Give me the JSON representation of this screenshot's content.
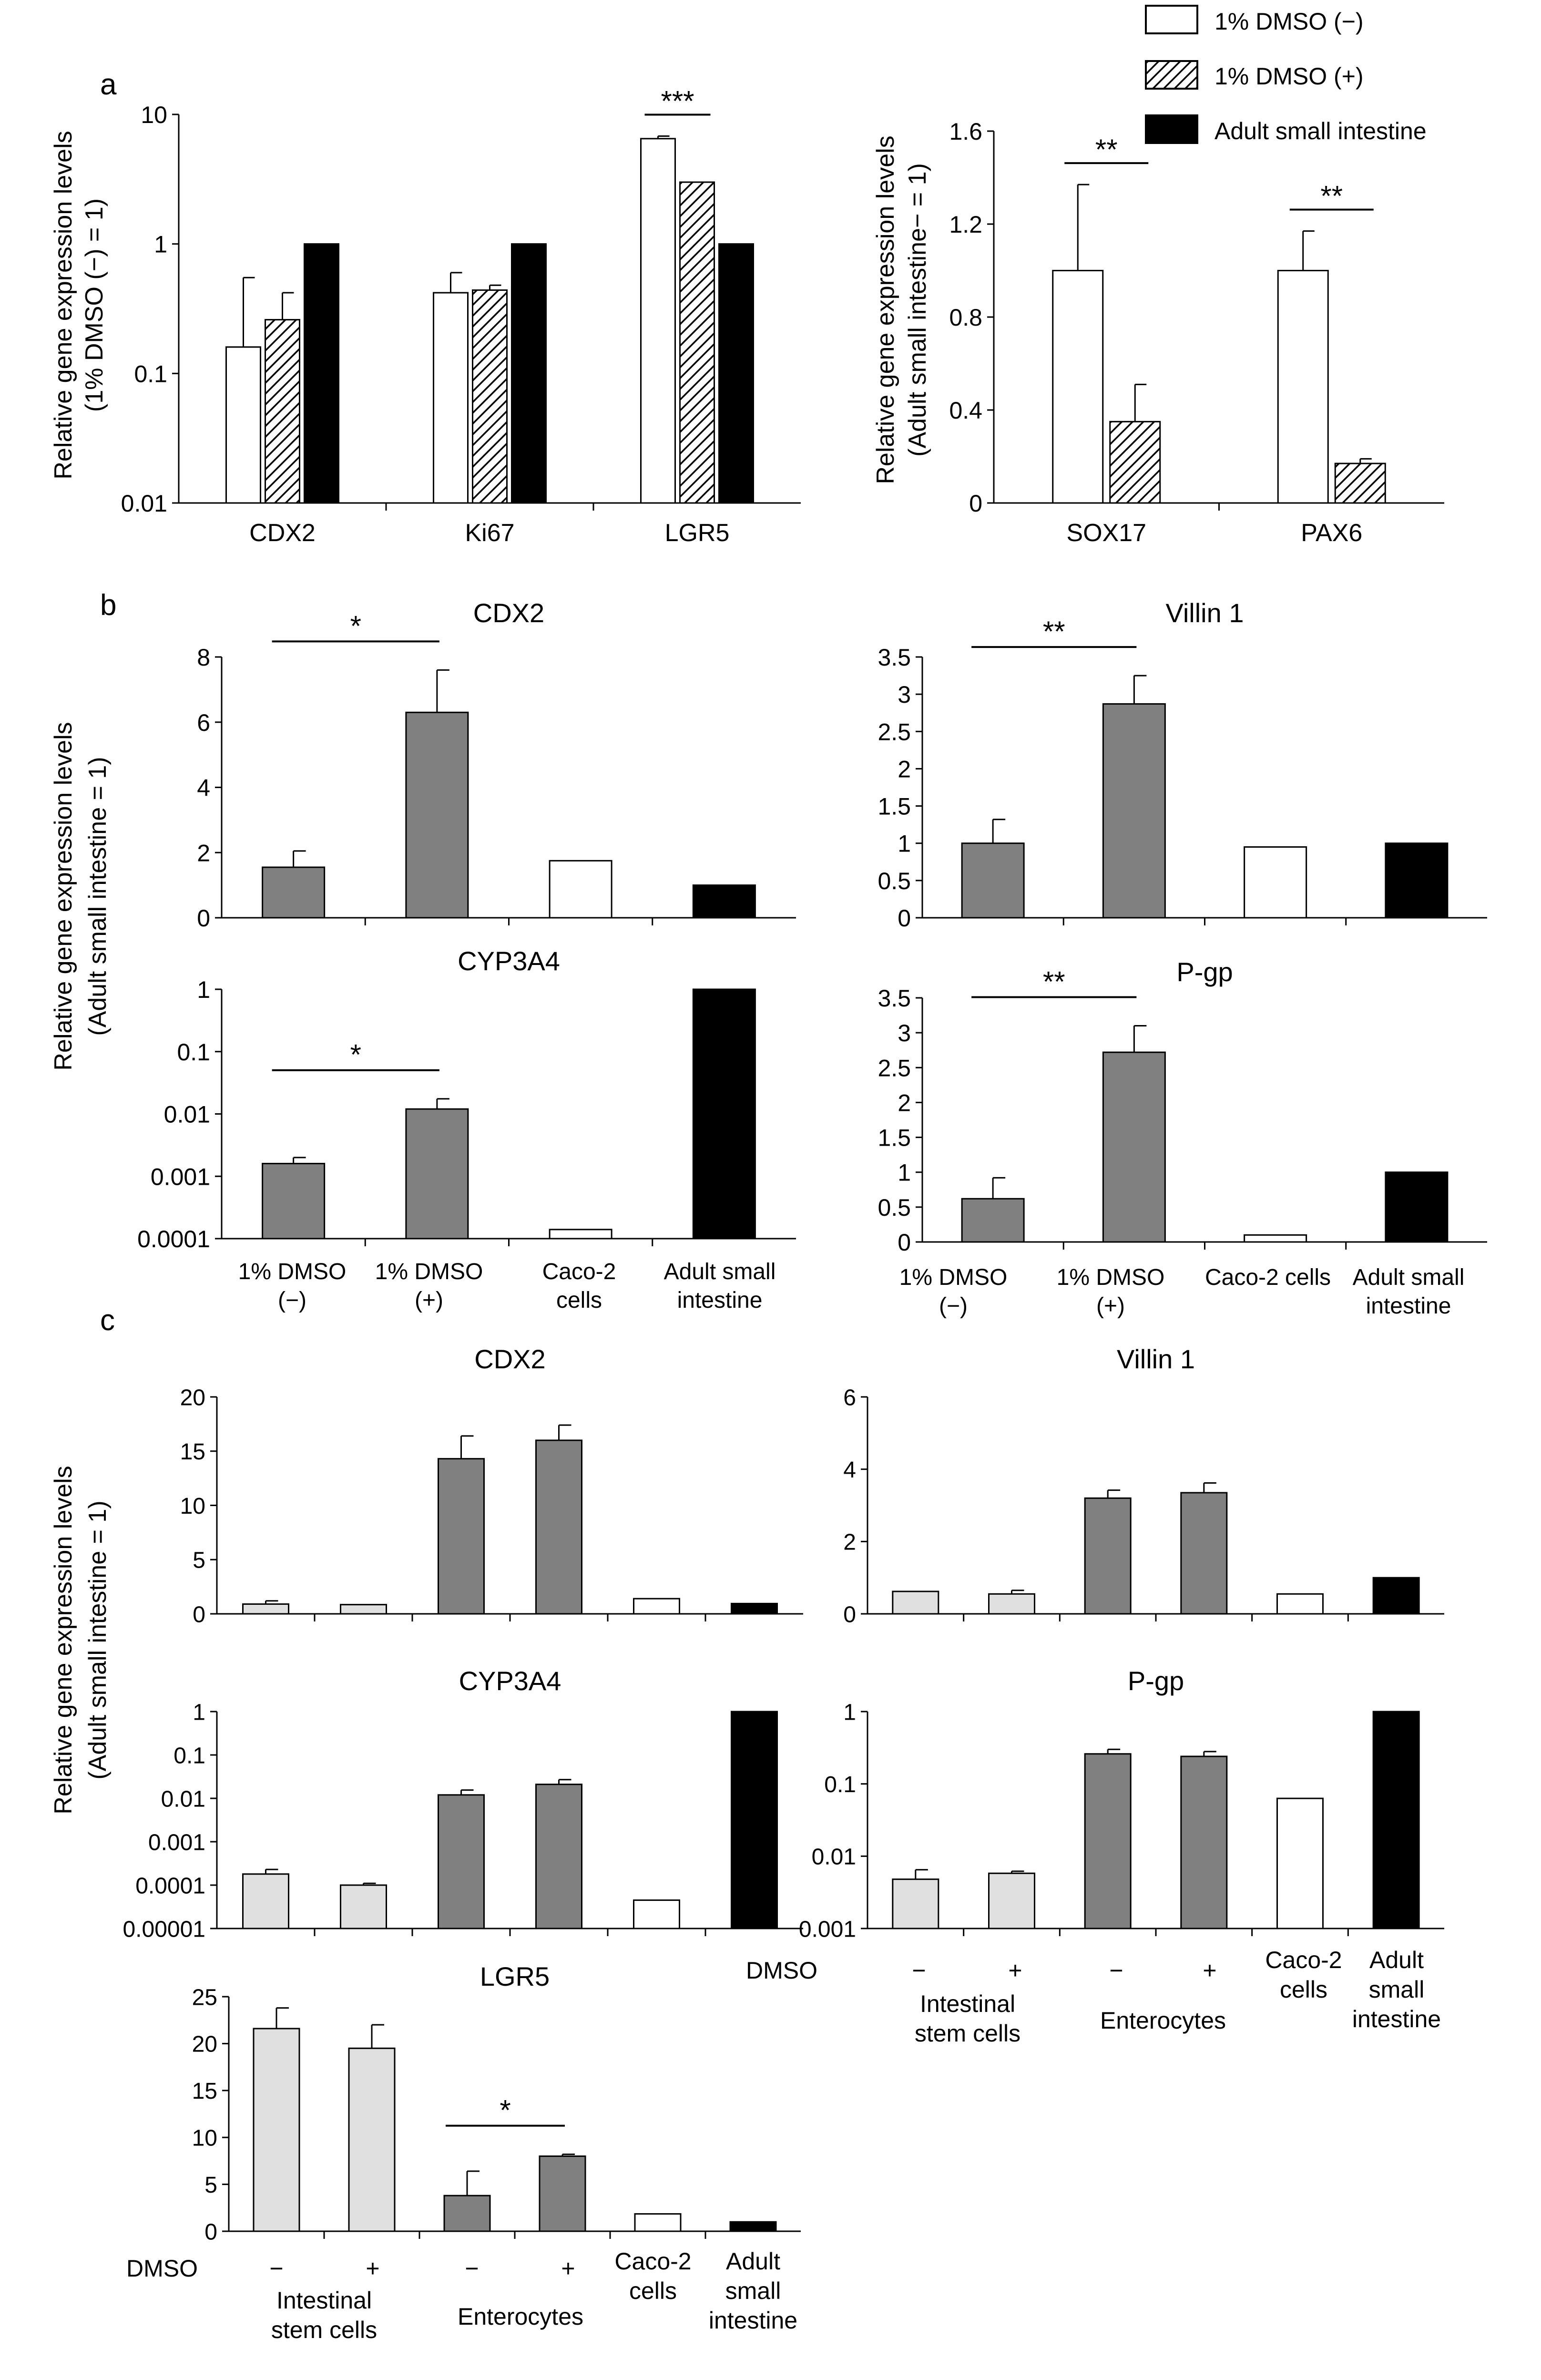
{
  "figure": {
    "panel_letters": [
      "a",
      "b",
      "c"
    ],
    "legend": [
      {
        "label": "1% DMSO (−)",
        "style": "white"
      },
      {
        "label": "1% DMSO (+)",
        "style": "hatch"
      },
      {
        "label": "Adult small intestine",
        "style": "black"
      }
    ],
    "shared_ylabels": {
      "a_left": [
        "Relative gene expression levels",
        "(1% DMSO (−) = 1)"
      ],
      "a_right": [
        "Relative gene expression levels",
        "(Adult small intestine− = 1)"
      ],
      "b": [
        "Relative gene expression levels",
        "(Adult small intestine = 1)"
      ],
      "c": [
        "Relative gene expression levels",
        "(Adult small intestine = 1)"
      ]
    },
    "dmso_row_label": "DMSO",
    "c_group_labels": {
      "minus": "−",
      "plus": "+",
      "stem": [
        "Intestinal",
        "stem cells"
      ],
      "entero": [
        "Enterocytes"
      ],
      "caco": [
        "Caco-2",
        "cells"
      ],
      "adult": [
        "Adult",
        "small",
        "intestine"
      ]
    },
    "b_categories_left": [
      [
        "1% DMSO",
        "(−)"
      ],
      [
        "1% DMSO",
        "(+)"
      ],
      [
        "Caco-2",
        "cells"
      ],
      [
        "Adult small",
        "intestine"
      ]
    ],
    "b_categories_right": [
      [
        "1% DMSO",
        "(−)"
      ],
      [
        "1% DMSO",
        "(+)"
      ],
      [
        "Caco-2 cells"
      ],
      [
        "Adult small",
        "intestine"
      ]
    ]
  },
  "colors": {
    "white": "#ffffff",
    "hatch": "#9a9a9a",
    "black": "#000000",
    "dark_gray": "#808080",
    "light_gray": "#e0e0e0"
  },
  "chart_data": [
    {
      "id": "a-left",
      "type": "bar",
      "scale": "log",
      "ylim": [
        0.01,
        10
      ],
      "yticks": [
        0.01,
        0.1,
        1,
        10
      ],
      "ytick_labels": [
        "0.01",
        "0.1",
        "1",
        "10"
      ],
      "categories": [
        "CDX2",
        "Ki67",
        "LGR5"
      ],
      "series": [
        {
          "name": "1% DMSO (−)",
          "style": "white",
          "values": [
            0.16,
            0.42,
            6.5
          ],
          "errors": [
            0.55,
            0.6,
            6.8
          ]
        },
        {
          "name": "1% DMSO (+)",
          "style": "hatch",
          "values": [
            0.26,
            0.44,
            3.0
          ],
          "errors": [
            0.42,
            0.48,
            null
          ]
        },
        {
          "name": "Adult small intestine",
          "style": "black",
          "values": [
            1,
            1,
            1
          ],
          "errors": [
            null,
            null,
            null
          ]
        }
      ],
      "significance": [
        {
          "label": "***",
          "from": [
            2,
            0
          ],
          "to": [
            2,
            1
          ]
        }
      ]
    },
    {
      "id": "a-right",
      "type": "bar",
      "scale": "linear",
      "ylim": [
        0,
        1.6
      ],
      "yticks": [
        0,
        0.4,
        0.8,
        1.2,
        1.6
      ],
      "ytick_labels": [
        "0",
        "0.4",
        "0.8",
        "1.2",
        "1.6"
      ],
      "categories": [
        "SOX17",
        "PAX6"
      ],
      "series": [
        {
          "name": "1% DMSO (−)",
          "style": "white",
          "values": [
            1.0,
            1.0
          ],
          "errors": [
            1.37,
            1.17
          ]
        },
        {
          "name": "1% DMSO (+)",
          "style": "hatch",
          "values": [
            0.35,
            0.17
          ],
          "errors": [
            0.51,
            0.19
          ]
        }
      ],
      "significance": [
        {
          "label": "**",
          "from": [
            0,
            0
          ],
          "to": [
            0,
            1
          ]
        },
        {
          "label": "**",
          "from": [
            1,
            0
          ],
          "to": [
            1,
            1
          ]
        }
      ]
    },
    {
      "id": "b-cdx2",
      "type": "bar",
      "title": "CDX2",
      "scale": "linear",
      "ylim": [
        0,
        8
      ],
      "yticks": [
        0,
        2,
        4,
        6,
        8
      ],
      "ytick_labels": [
        "0",
        "2",
        "4",
        "6",
        "8"
      ],
      "values": [
        1.55,
        6.3,
        1.75,
        1.0
      ],
      "errors": [
        2.05,
        7.6,
        null,
        null
      ],
      "styles": [
        "dark_gray",
        "dark_gray",
        "white",
        "black"
      ],
      "significance": [
        {
          "label": "*",
          "from": 0,
          "to": 1
        }
      ]
    },
    {
      "id": "b-villin",
      "type": "bar",
      "title": "Villin 1",
      "scale": "linear",
      "ylim": [
        0,
        3.5
      ],
      "yticks": [
        0,
        0.5,
        1,
        1.5,
        2,
        2.5,
        3,
        3.5
      ],
      "ytick_labels": [
        "0",
        "0.5",
        "1",
        "1.5",
        "2",
        "2.5",
        "3",
        "3.5"
      ],
      "values": [
        1.0,
        2.87,
        0.95,
        1.0
      ],
      "errors": [
        1.32,
        3.25,
        null,
        null
      ],
      "styles": [
        "dark_gray",
        "dark_gray",
        "white",
        "black"
      ],
      "significance": [
        {
          "label": "**",
          "from": 0,
          "to": 1
        }
      ]
    },
    {
      "id": "b-cyp",
      "type": "bar",
      "title": "CYP3A4",
      "scale": "log",
      "ylim": [
        0.0001,
        1
      ],
      "yticks": [
        0.0001,
        0.001,
        0.01,
        0.1,
        1
      ],
      "ytick_labels": [
        "0.0001",
        "0.001",
        "0.01",
        "0.1",
        "1"
      ],
      "values": [
        0.0016,
        0.012,
        0.00014,
        1.0
      ],
      "errors": [
        0.002,
        0.0175,
        null,
        null
      ],
      "styles": [
        "dark_gray",
        "dark_gray",
        "white",
        "black"
      ],
      "significance": [
        {
          "label": "*",
          "from": 0,
          "to": 1
        }
      ]
    },
    {
      "id": "b-pgp",
      "type": "bar",
      "title": "P-gp",
      "scale": "linear",
      "ylim": [
        0,
        3.5
      ],
      "yticks": [
        0,
        0.5,
        1,
        1.5,
        2,
        2.5,
        3,
        3.5
      ],
      "ytick_labels": [
        "0",
        "0.5",
        "1",
        "1.5",
        "2",
        "2.5",
        "3",
        "3.5"
      ],
      "values": [
        0.62,
        2.72,
        0.1,
        1.0
      ],
      "errors": [
        0.92,
        3.1,
        null,
        null
      ],
      "styles": [
        "dark_gray",
        "dark_gray",
        "white",
        "black"
      ],
      "significance": [
        {
          "label": "**",
          "from": 0,
          "to": 1
        }
      ]
    },
    {
      "id": "c-cdx2",
      "type": "bar",
      "title": "CDX2",
      "scale": "linear",
      "ylim": [
        0,
        20
      ],
      "yticks": [
        0,
        5,
        10,
        15,
        20
      ],
      "ytick_labels": [
        "0",
        "5",
        "10",
        "15",
        "20"
      ],
      "values": [
        0.9,
        0.85,
        14.3,
        16.0,
        1.4,
        0.95
      ],
      "errors": [
        1.2,
        null,
        16.4,
        17.4,
        null,
        null
      ],
      "styles": [
        "light_gray",
        "light_gray",
        "dark_gray",
        "dark_gray",
        "white",
        "black"
      ],
      "significance": []
    },
    {
      "id": "c-villin",
      "type": "bar",
      "title": "Villin 1",
      "scale": "linear",
      "ylim": [
        0,
        6
      ],
      "yticks": [
        0,
        2,
        4,
        6
      ],
      "ytick_labels": [
        "0",
        "2",
        "4",
        "6"
      ],
      "values": [
        0.62,
        0.55,
        3.2,
        3.35,
        0.55,
        1.0
      ],
      "errors": [
        null,
        0.65,
        3.42,
        3.62,
        null,
        null
      ],
      "styles": [
        "light_gray",
        "light_gray",
        "dark_gray",
        "dark_gray",
        "white",
        "black"
      ],
      "significance": []
    },
    {
      "id": "c-cyp",
      "type": "bar",
      "title": "CYP3A4",
      "scale": "log",
      "ylim": [
        1e-05,
        1
      ],
      "yticks": [
        1e-05,
        0.0001,
        0.001,
        0.01,
        0.1,
        1
      ],
      "ytick_labels": [
        "0.00001",
        "0.0001",
        "0.001",
        "0.01",
        "0.1",
        "1"
      ],
      "values": [
        0.00018,
        0.0001,
        0.012,
        0.021,
        4.5e-05,
        1.0
      ],
      "errors": [
        0.00023,
        0.00011,
        0.0155,
        0.027,
        null,
        null
      ],
      "styles": [
        "light_gray",
        "light_gray",
        "dark_gray",
        "dark_gray",
        "white",
        "black"
      ],
      "significance": []
    },
    {
      "id": "c-pgp",
      "type": "bar",
      "title": "P-gp",
      "scale": "log",
      "ylim": [
        0.001,
        1
      ],
      "yticks": [
        0.001,
        0.01,
        0.1,
        1
      ],
      "ytick_labels": [
        "0.001",
        "0.01",
        "0.1",
        "1"
      ],
      "values": [
        0.0048,
        0.0058,
        0.26,
        0.24,
        0.063,
        1.0
      ],
      "errors": [
        0.0065,
        0.0062,
        0.3,
        0.28,
        null,
        null
      ],
      "styles": [
        "light_gray",
        "light_gray",
        "dark_gray",
        "dark_gray",
        "white",
        "black"
      ],
      "significance": []
    },
    {
      "id": "c-lgr5",
      "type": "bar",
      "title": "LGR5",
      "scale": "linear",
      "ylim": [
        0,
        25
      ],
      "yticks": [
        0,
        5,
        10,
        15,
        20,
        25
      ],
      "ytick_labels": [
        "0",
        "5",
        "10",
        "15",
        "20",
        "25"
      ],
      "values": [
        21.6,
        19.5,
        3.8,
        8.0,
        1.85,
        1.0
      ],
      "errors": [
        23.8,
        22.0,
        6.4,
        8.2,
        null,
        null
      ],
      "styles": [
        "light_gray",
        "light_gray",
        "dark_gray",
        "dark_gray",
        "white",
        "black"
      ],
      "significance": [
        {
          "label": "*",
          "from": 2,
          "to": 3
        }
      ]
    }
  ]
}
